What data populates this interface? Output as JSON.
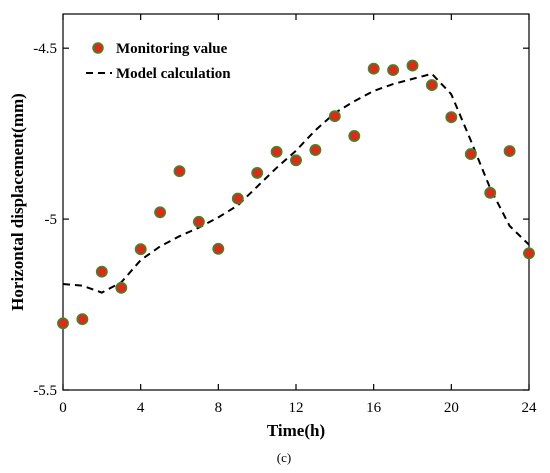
{
  "chart_data": {
    "type": "scatter",
    "xlabel": "Time(h)",
    "ylabel": "Horizontal displacement(mm)",
    "xlim": [
      0,
      24
    ],
    "ylim": [
      -5.5,
      -4.4
    ],
    "xticks": [
      0,
      4,
      8,
      12,
      16,
      20,
      24
    ],
    "xtick_labels": [
      "0",
      "4",
      "8",
      "12",
      "16",
      "20",
      "24"
    ],
    "yticks": [
      -4.5,
      -5.0,
      -5.5
    ],
    "ytick_labels": [
      "-4.5",
      "-5",
      "-5.5"
    ],
    "grid": false,
    "legend_position": "top-left",
    "series": [
      {
        "name": "Monitoring value",
        "kind": "markers",
        "marker_fill": "#dd2a1a",
        "marker_edge": "#3a8a26",
        "x": [
          0,
          1,
          2,
          3,
          4,
          5,
          6,
          7,
          8,
          9,
          10,
          11,
          12,
          13,
          14,
          15,
          16,
          17,
          18,
          19,
          20,
          21,
          22,
          23,
          24
        ],
        "y": [
          -5.305,
          -5.293,
          -5.154,
          -5.201,
          -5.088,
          -4.98,
          -4.86,
          -5.008,
          -5.087,
          -4.94,
          -4.865,
          -4.803,
          -4.828,
          -4.798,
          -4.699,
          -4.757,
          -4.56,
          -4.564,
          -4.551,
          -4.608,
          -4.702,
          -4.81,
          -4.923,
          -4.801,
          -5.1
        ]
      },
      {
        "name": "Model calculation",
        "kind": "dashed-line",
        "color": "#000000",
        "x": [
          0,
          1,
          2,
          3,
          4,
          5,
          6,
          7,
          8,
          9,
          10,
          11,
          12,
          13,
          14,
          15,
          16,
          17,
          18,
          19,
          20,
          21,
          22,
          23,
          24
        ],
        "y": [
          -5.19,
          -5.195,
          -5.215,
          -5.185,
          -5.12,
          -5.08,
          -5.05,
          -5.025,
          -4.995,
          -4.96,
          -4.905,
          -4.85,
          -4.8,
          -4.74,
          -4.69,
          -4.655,
          -4.625,
          -4.605,
          -4.59,
          -4.575,
          -4.635,
          -4.77,
          -4.91,
          -5.02,
          -5.075
        ]
      }
    ],
    "caption": "(c)"
  }
}
